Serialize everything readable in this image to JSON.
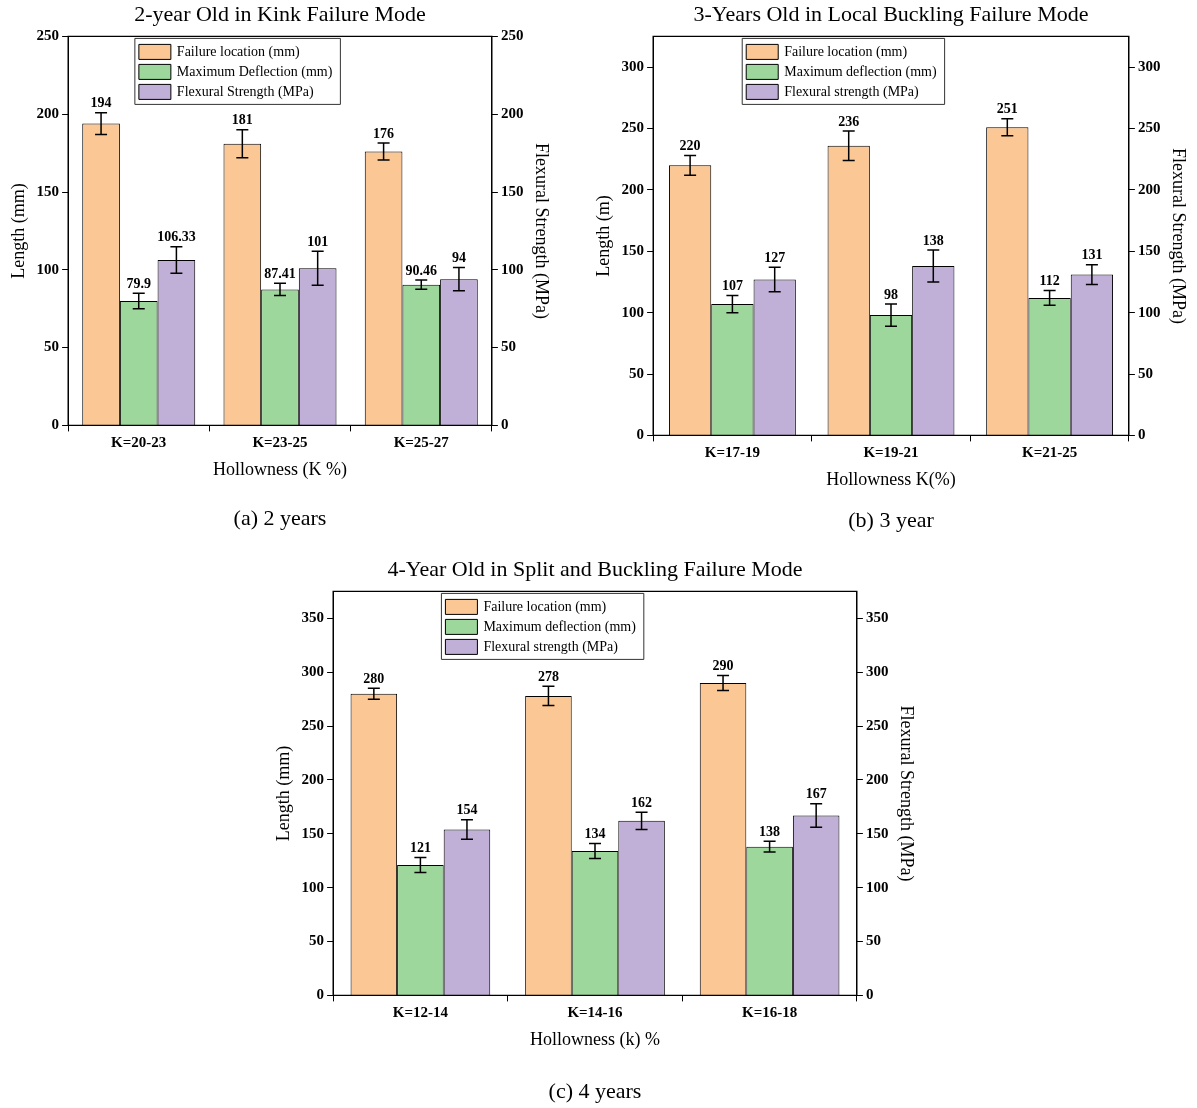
{
  "chart_data": [
    {
      "type": "bar",
      "title": "2-year Old in Kink Failure Mode",
      "xlabel": "Hollowness (K %)",
      "ylabel": "Length (mm)",
      "y2label": "Flexural Strength (MPa)",
      "categories": [
        "K=20-23",
        "K=23-25",
        "K=25-27"
      ],
      "series": [
        {
          "name": "Failure location (mm)",
          "color": "#fbc794",
          "values": [
            194,
            181,
            176
          ],
          "errors": [
            7,
            9,
            5.5
          ]
        },
        {
          "name": "Maximum Deflection (mm)",
          "color": "#9dd79c",
          "values": [
            79.9,
            87.41,
            90.46
          ],
          "errors": [
            5,
            4,
            3
          ]
        },
        {
          "name": "Flexural Strength (MPa)",
          "color": "#c0afd6",
          "values": [
            106.33,
            101,
            94
          ],
          "errors": [
            8.5,
            11,
            7.5
          ]
        }
      ],
      "ylim": [
        0,
        250
      ],
      "yticks": [
        0,
        50,
        100,
        150,
        200,
        250
      ],
      "y2lim": [
        0,
        250
      ],
      "y2ticks": [
        0,
        50,
        100,
        150,
        200,
        250
      ],
      "data_labels": true,
      "legend": "top",
      "grid": false,
      "annotations": [
        "(a) 2 years"
      ]
    },
    {
      "type": "bar",
      "title": "3-Years Old in Local Buckling Failure Mode",
      "xlabel": "Hollowness K(%)",
      "ylabel": "Length (m)",
      "y2label": "Flexural Strength (MPa)",
      "categories": [
        "K=17-19",
        "K=19-21",
        "K=21-25"
      ],
      "series": [
        {
          "name": "Failure location (mm)",
          "color": "#fbc794",
          "values": [
            220,
            236,
            251
          ],
          "errors": [
            8,
            12,
            7
          ]
        },
        {
          "name": "Maximum deflection (mm)",
          "color": "#9dd79c",
          "values": [
            107,
            98,
            112
          ],
          "errors": [
            7,
            9,
            6
          ]
        },
        {
          "name": "Flexural strength (MPa)",
          "color": "#c0afd6",
          "values": [
            127,
            138,
            131
          ],
          "errors": [
            10,
            13,
            8
          ]
        }
      ],
      "ylim": [
        0,
        325
      ],
      "yticks": [
        0,
        50,
        100,
        150,
        200,
        250,
        300
      ],
      "y2lim": [
        0,
        325
      ],
      "y2ticks": [
        0,
        50,
        100,
        150,
        200,
        250,
        300
      ],
      "data_labels": true,
      "legend": "top",
      "grid": false,
      "annotations": [
        "(b) 3 year"
      ]
    },
    {
      "type": "bar",
      "title": "4-Year Old in Split and Buckling Failure Mode",
      "xlabel": "Hollowness (k) %",
      "ylabel": "Length (mm)",
      "y2label": "Flexural Strength (MPa)",
      "categories": [
        "K=12-14",
        "K=14-16",
        "K=16-18"
      ],
      "series": [
        {
          "name": "Failure location (mm)",
          "color": "#fbc794",
          "values": [
            280,
            278,
            290
          ],
          "errors": [
            5,
            9,
            7
          ]
        },
        {
          "name": "Maximum deflection (mm)",
          "color": "#9dd79c",
          "values": [
            121,
            134,
            138
          ],
          "errors": [
            7,
            7,
            5
          ]
        },
        {
          "name": "Flexural strength (MPa)",
          "color": "#c0afd6",
          "values": [
            154,
            162,
            167
          ],
          "errors": [
            9,
            8,
            11
          ]
        }
      ],
      "ylim": [
        0,
        375
      ],
      "yticks": [
        0,
        50,
        100,
        150,
        200,
        250,
        300,
        350
      ],
      "y2lim": [
        0,
        375
      ],
      "y2ticks": [
        0,
        50,
        100,
        150,
        200,
        250,
        300,
        350
      ],
      "data_labels": true,
      "legend": "top",
      "grid": false,
      "annotations": [
        "(c) 4 years"
      ]
    }
  ]
}
